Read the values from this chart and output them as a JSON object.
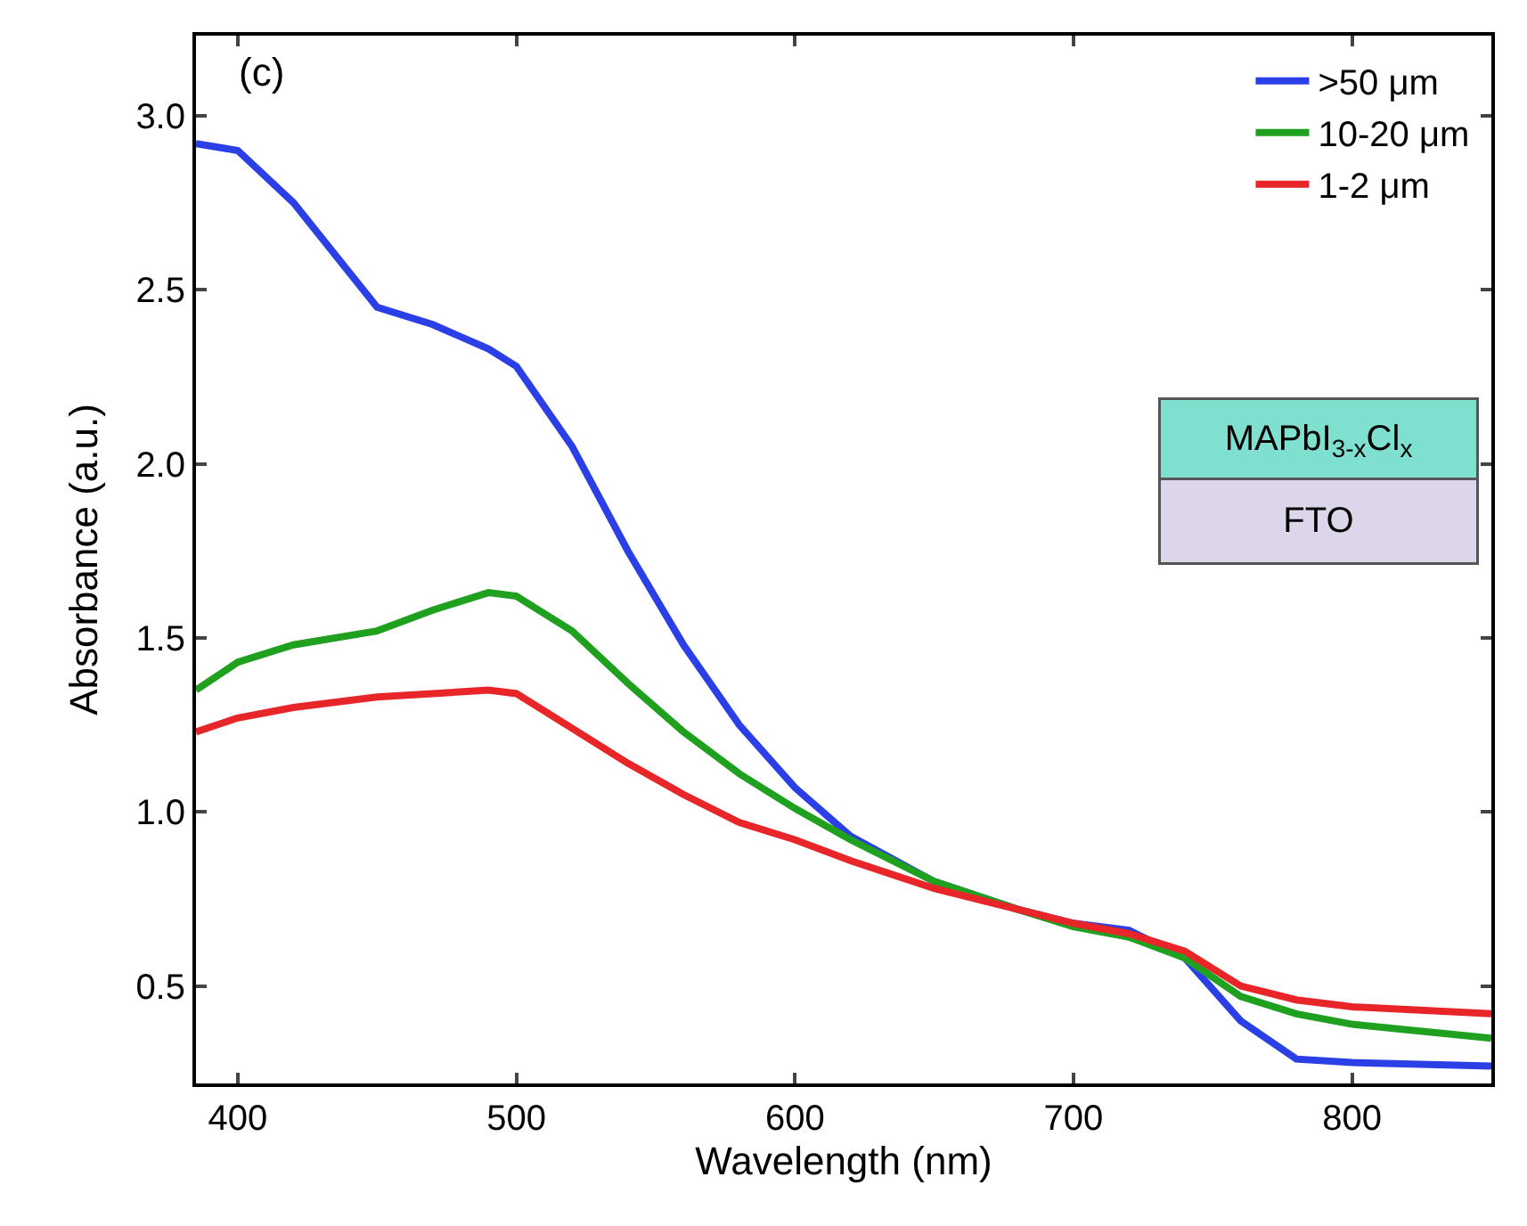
{
  "chart_data": {
    "type": "line",
    "xlabel": "Wavelength (nm)",
    "ylabel": "Absorbance (a.u.)",
    "x": [
      385,
      400,
      420,
      450,
      470,
      490,
      500,
      520,
      540,
      560,
      580,
      600,
      620,
      650,
      680,
      700,
      720,
      740,
      760,
      780,
      800,
      850
    ],
    "series": [
      {
        "name": ">50 μm",
        "color": "#2b3fe6",
        "values": [
          2.92,
          2.9,
          2.75,
          2.45,
          2.4,
          2.33,
          2.28,
          2.05,
          1.75,
          1.48,
          1.25,
          1.07,
          0.93,
          0.8,
          0.72,
          0.68,
          0.66,
          0.58,
          0.4,
          0.29,
          0.28,
          0.27
        ]
      },
      {
        "name": "10-20 μm",
        "color": "#1fa01f",
        "values": [
          1.35,
          1.43,
          1.48,
          1.52,
          1.58,
          1.63,
          1.62,
          1.52,
          1.37,
          1.23,
          1.11,
          1.01,
          0.92,
          0.8,
          0.72,
          0.67,
          0.64,
          0.58,
          0.47,
          0.42,
          0.39,
          0.35
        ]
      },
      {
        "name": "1-2 μm",
        "color": "#e8262a",
        "values": [
          1.23,
          1.27,
          1.3,
          1.33,
          1.34,
          1.35,
          1.34,
          1.24,
          1.14,
          1.05,
          0.97,
          0.92,
          0.86,
          0.78,
          0.72,
          0.68,
          0.65,
          0.6,
          0.5,
          0.46,
          0.44,
          0.42
        ]
      }
    ],
    "xlim": [
      385,
      850
    ],
    "ylim": [
      0.22,
      3.23
    ],
    "xticks": [
      400,
      500,
      600,
      700,
      800
    ],
    "yticks": [
      0.5,
      {
        "value": 1,
        "label": "1.0"
      },
      1.5,
      {
        "value": 2,
        "label": "2.0"
      },
      2.5,
      {
        "value": 3,
        "label": "3.0"
      }
    ],
    "legend": "top right",
    "marker": "none",
    "line_style": "solid",
    "annotations": [
      "(c)",
      "MAPbI$_{3-x}$Cl$_{x}$",
      "FTO"
    ]
  }
}
